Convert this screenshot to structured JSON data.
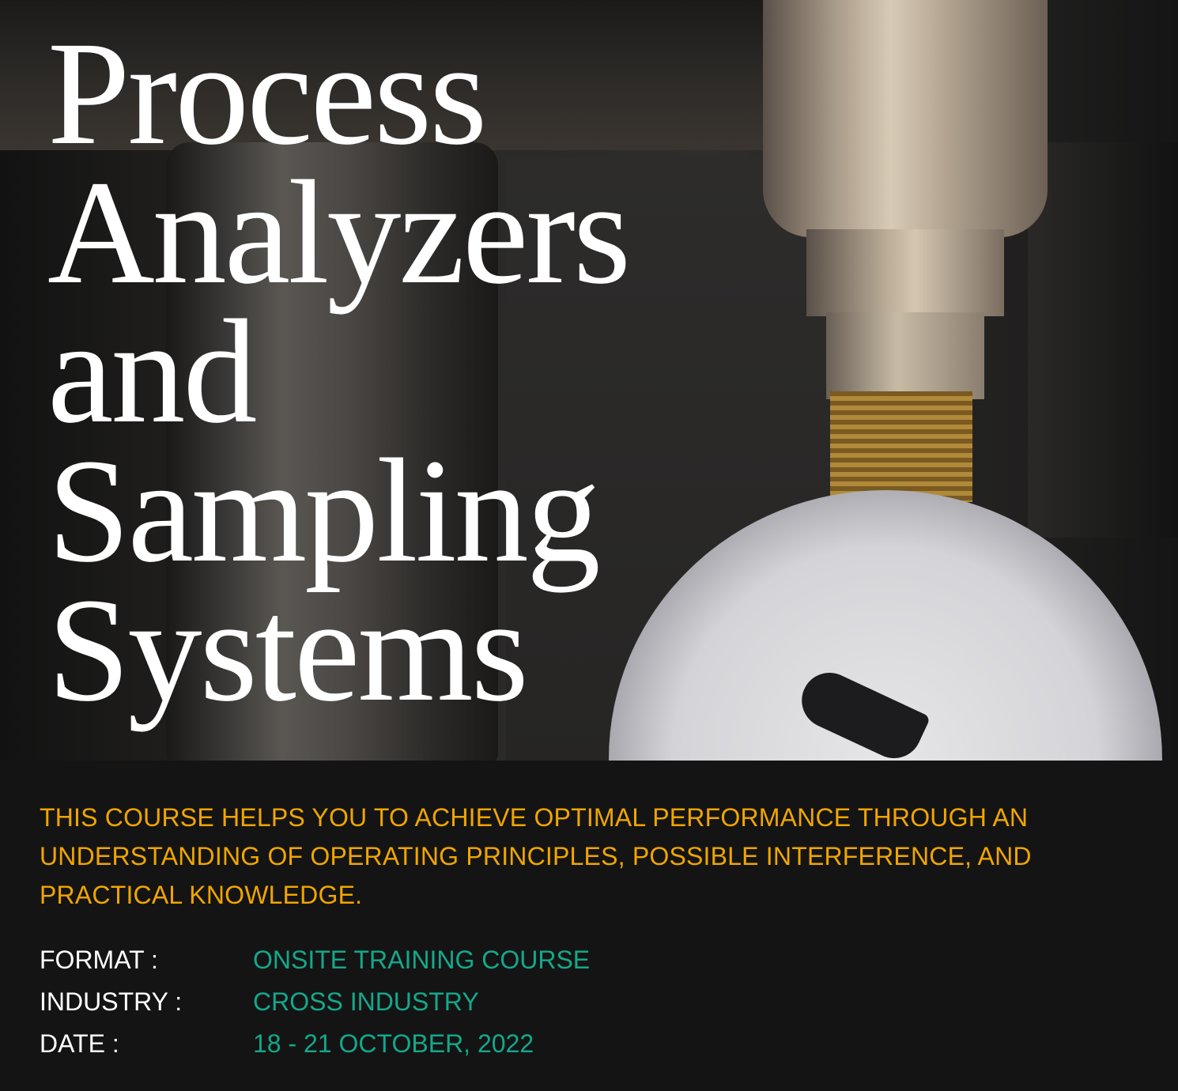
{
  "title_lines": [
    "Process",
    "Analyzers",
    "and",
    "Sampling",
    "Systems"
  ],
  "description": "THIS COURSE HELPS YOU TO ACHIEVE OPTIMAL PERFORMANCE THROUGH AN UNDERSTANDING OF OPERATING PRINCIPLES, POSSIBLE INTERFERENCE, AND PRACTICAL KNOWLEDGE.",
  "details": [
    {
      "label": "FORMAT :",
      "value": "ONSITE TRAINING COURSE"
    },
    {
      "label": "INDUSTRY :",
      "value": "CROSS INDUSTRY"
    },
    {
      "label": "DATE :",
      "value": "18 - 21 OCTOBER, 2022"
    }
  ],
  "colors": {
    "background": "#141414",
    "description": "#f0a500",
    "value": "#14a88b",
    "label": "#ffffff"
  },
  "image": {
    "subject": "pressure-gauge-with-pipe-fitting"
  }
}
